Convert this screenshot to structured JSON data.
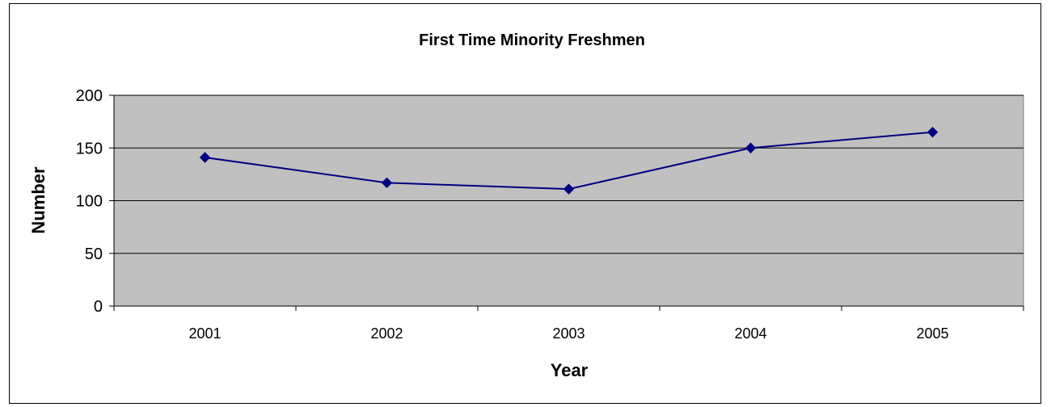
{
  "chart_data": {
    "type": "line",
    "title": "First Time Minority Freshmen",
    "xlabel": "Year",
    "ylabel": "Number",
    "categories": [
      "2001",
      "2002",
      "2003",
      "2004",
      "2005"
    ],
    "series": [
      {
        "values": [
          141,
          117,
          111,
          150,
          165
        ]
      }
    ],
    "ylim": [
      0,
      200
    ],
    "yticks": [
      "0",
      "50",
      "100",
      "150",
      "200"
    ],
    "grid": true,
    "plot_background": "#C0C0C0",
    "line_color": "#000080",
    "marker": "diamond",
    "legend": "none"
  }
}
